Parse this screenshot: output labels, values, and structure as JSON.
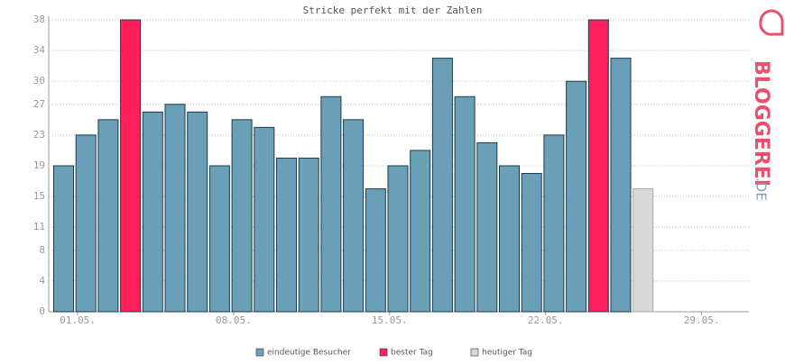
{
  "chart_data": {
    "type": "bar",
    "title": "Stricke perfekt mit der Zahlen",
    "categories": [
      "01.05.",
      null,
      null,
      null,
      null,
      null,
      null,
      "08.05.",
      null,
      null,
      null,
      null,
      null,
      null,
      "15.05.",
      null,
      null,
      null,
      null,
      null,
      null,
      "22.05.",
      null,
      null,
      null,
      null,
      null,
      null,
      "29.05.",
      null,
      null
    ],
    "series": [
      {
        "name": "eindeutige Besucher",
        "color": "#6a9fb8",
        "values": [
          19,
          23,
          25,
          null,
          26,
          27,
          26,
          19,
          25,
          24,
          20,
          20,
          28,
          25,
          16,
          19,
          21,
          33,
          28,
          22,
          19,
          18,
          23,
          30,
          null,
          33,
          null,
          null,
          null,
          null,
          null
        ]
      },
      {
        "name": "bester Tag",
        "color": "#ff1f5a",
        "values": [
          null,
          null,
          null,
          38,
          null,
          null,
          null,
          null,
          null,
          null,
          null,
          null,
          null,
          null,
          null,
          null,
          null,
          null,
          null,
          null,
          null,
          null,
          null,
          null,
          38,
          null,
          null,
          null,
          null,
          null,
          null
        ]
      },
      {
        "name": "heutiger Tag",
        "color": "#d8d8d8",
        "values": [
          null,
          null,
          null,
          null,
          null,
          null,
          null,
          null,
          null,
          null,
          null,
          null,
          null,
          null,
          null,
          null,
          null,
          null,
          null,
          null,
          null,
          null,
          null,
          null,
          null,
          null,
          16,
          null,
          null,
          null,
          null
        ]
      }
    ],
    "ylim": [
      0,
      38
    ],
    "yticks": [
      0,
      4,
      8,
      11,
      15,
      19,
      23,
      27,
      30,
      34,
      38
    ],
    "grid": true,
    "logo_text": "BLOGGEREI",
    "logo_suffix": ".DE"
  }
}
